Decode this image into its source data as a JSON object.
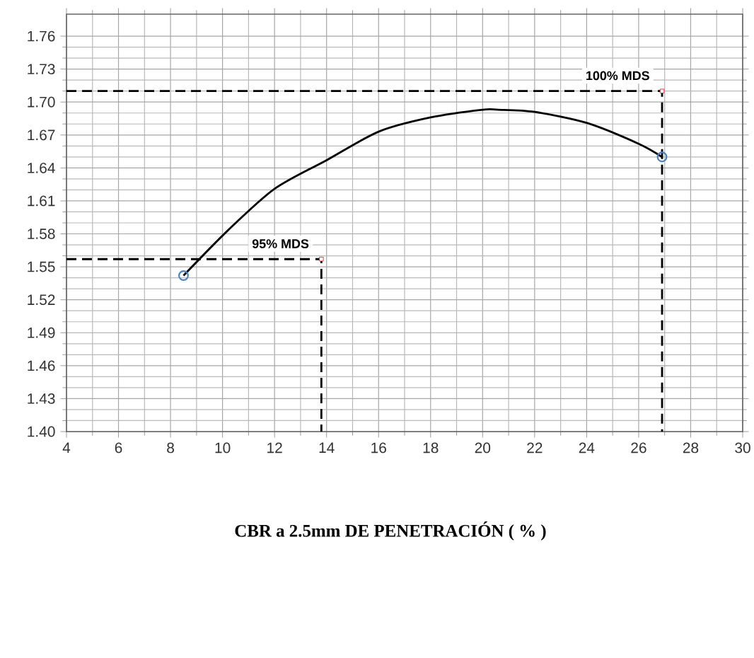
{
  "chart_data": {
    "type": "line",
    "xlabel": "CBR a 2.5mm DE PENETRACIÓN  ( % )",
    "xlim": [
      4,
      30
    ],
    "ylim": [
      1.4,
      1.78
    ],
    "xticks": [
      4,
      6,
      8,
      10,
      12,
      14,
      16,
      18,
      20,
      22,
      24,
      26,
      28,
      30
    ],
    "yticks": [
      {
        "value": 1.4,
        "label": "1.40"
      },
      1.43,
      1.46,
      1.49,
      1.52,
      1.55,
      1.58,
      1.61,
      1.64,
      1.67,
      {
        "value": 1.7,
        "label": "1.70"
      },
      1.73,
      1.76
    ],
    "grid": true,
    "series": [
      {
        "type": "line",
        "color": "#000000",
        "line_style": "solid",
        "x": [
          8.5,
          10.2,
          12,
          14,
          16,
          18,
          20,
          20.6,
          22,
          24,
          26,
          26.9
        ],
        "values": [
          1.542,
          1.583,
          1.621,
          1.647,
          1.673,
          1.686,
          1.693,
          1.693,
          1.691,
          1.681,
          1.662,
          1.65
        ]
      },
      {
        "type": "scatter",
        "color": "#4f81bd",
        "marker": "circle",
        "x": [
          8.5,
          26.9
        ],
        "values": [
          1.542,
          1.65
        ]
      },
      {
        "type": "line",
        "color": "#000000",
        "line_style": "dashed",
        "x": [
          4,
          13.8,
          13.8
        ],
        "values": [
          1.557,
          1.557,
          1.4
        ]
      },
      {
        "type": "line",
        "color": "#000000",
        "line_style": "dashed",
        "x": [
          4,
          26.9,
          26.9
        ],
        "values": [
          1.71,
          1.71,
          1.4
        ]
      },
      {
        "type": "scatter",
        "color": "#ff0000",
        "marker": "square",
        "x": [
          13.8,
          26.9
        ],
        "values": [
          1.557,
          1.71
        ]
      }
    ],
    "annotations": [
      {
        "text": "95% MDS",
        "x": 13.8,
        "y": 1.557
      },
      {
        "text": "100% MDS",
        "x": 26.9,
        "y": 1.71
      }
    ]
  }
}
